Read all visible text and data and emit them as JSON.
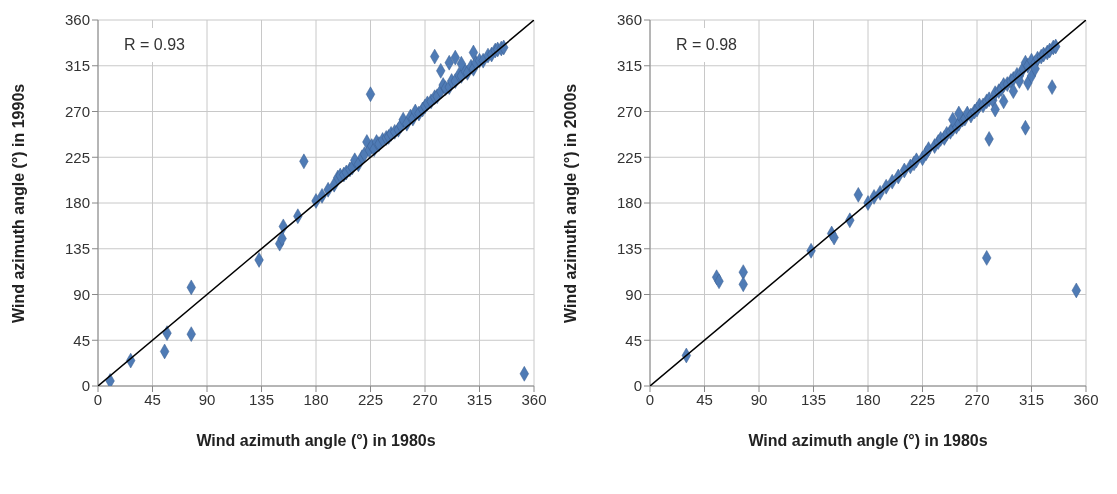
{
  "chart_data": [
    {
      "type": "scatter",
      "xlabel": "Wind azimuth angle (°) in 1980s",
      "ylabel": "Wind azimuth angle (°) in 1990s",
      "annotations": [
        "R = 0.93"
      ],
      "xlim": [
        0,
        360
      ],
      "ylim": [
        0,
        360
      ],
      "xticks": [
        0,
        45,
        90,
        135,
        180,
        225,
        270,
        315,
        360
      ],
      "yticks": [
        0,
        45,
        90,
        135,
        180,
        225,
        270,
        315,
        360
      ],
      "grid": true,
      "series": [
        {
          "marker": "diamond",
          "color": "#4f7bb5",
          "x": [
            10,
            27,
            55,
            57,
            77,
            77,
            133,
            150,
            152,
            153,
            165,
            170,
            225,
            278,
            352,
            180,
            185,
            190,
            195,
            198,
            200,
            203,
            205,
            208,
            210,
            212,
            215,
            218,
            220,
            222,
            224,
            226,
            228,
            230,
            232,
            235,
            238,
            240,
            242,
            245,
            248,
            250,
            252,
            255,
            258,
            260,
            262,
            265,
            268,
            270,
            272,
            275,
            278,
            280,
            283,
            285,
            287,
            290,
            292,
            295,
            298,
            300,
            303,
            305,
            308,
            310,
            312,
            315,
            318,
            322,
            325,
            328,
            330,
            333,
            335,
            283,
            290,
            300,
            310,
            295
          ],
          "values": [
            5,
            25,
            34,
            52,
            51,
            97,
            124,
            140,
            145,
            157,
            167,
            221,
            287,
            324,
            12,
            182,
            187,
            193,
            198,
            205,
            207,
            208,
            210,
            213,
            215,
            222,
            218,
            225,
            228,
            240,
            232,
            236,
            233,
            240,
            238,
            242,
            244,
            245,
            248,
            250,
            252,
            256,
            262,
            258,
            265,
            263,
            270,
            268,
            272,
            275,
            278,
            280,
            284,
            285,
            290,
            296,
            293,
            294,
            300,
            300,
            306,
            305,
            310,
            308,
            314,
            312,
            318,
            320,
            320,
            325,
            326,
            330,
            331,
            332,
            333,
            310,
            318,
            317,
            328,
            323
          ]
        },
        {
          "type": "line",
          "marker": "none",
          "color": "#000000",
          "x": [
            0,
            360
          ],
          "values": [
            0,
            360
          ]
        }
      ]
    },
    {
      "type": "scatter",
      "xlabel": "Wind azimuth angle (°) in 1980s",
      "ylabel": "Wind azimuth angle (°) in 2000s",
      "annotations": [
        "R = 0.98"
      ],
      "xlim": [
        0,
        360
      ],
      "ylim": [
        0,
        360
      ],
      "xticks": [
        0,
        45,
        90,
        135,
        180,
        225,
        270,
        315,
        360
      ],
      "yticks": [
        0,
        45,
        90,
        135,
        180,
        225,
        270,
        315,
        360
      ],
      "grid": true,
      "series": [
        {
          "marker": "diamond",
          "color": "#4f7bb5",
          "x": [
            30,
            55,
            57,
            77,
            77,
            133,
            150,
            152,
            172,
            165,
            278,
            280,
            310,
            332,
            352,
            312,
            180,
            185,
            190,
            195,
            200,
            205,
            210,
            215,
            218,
            220,
            225,
            228,
            230,
            235,
            238,
            240,
            243,
            245,
            248,
            250,
            253,
            255,
            258,
            260,
            262,
            265,
            268,
            270,
            272,
            275,
            278,
            280,
            283,
            285,
            288,
            290,
            292,
            295,
            298,
            300,
            303,
            305,
            308,
            310,
            312,
            315,
            318,
            320,
            323,
            325,
            328,
            330,
            333,
            335,
            285,
            292,
            300,
            305,
            315,
            318,
            250,
            255
          ],
          "values": [
            30,
            107,
            103,
            112,
            100,
            133,
            150,
            146,
            188,
            163,
            126,
            243,
            254,
            294,
            94,
            298,
            180,
            186,
            190,
            196,
            201,
            206,
            212,
            216,
            219,
            222,
            224,
            229,
            233,
            236,
            240,
            243,
            244,
            248,
            250,
            253,
            255,
            258,
            262,
            263,
            268,
            266,
            270,
            272,
            276,
            276,
            280,
            282,
            281,
            288,
            290,
            292,
            296,
            297,
            300,
            302,
            306,
            305,
            312,
            318,
            315,
            320,
            318,
            322,
            324,
            326,
            328,
            330,
            333,
            334,
            272,
            280,
            290,
            300,
            305,
            312,
            262,
            268
          ]
        },
        {
          "type": "line",
          "marker": "none",
          "color": "#000000",
          "x": [
            0,
            360
          ],
          "values": [
            0,
            360
          ]
        }
      ]
    }
  ]
}
